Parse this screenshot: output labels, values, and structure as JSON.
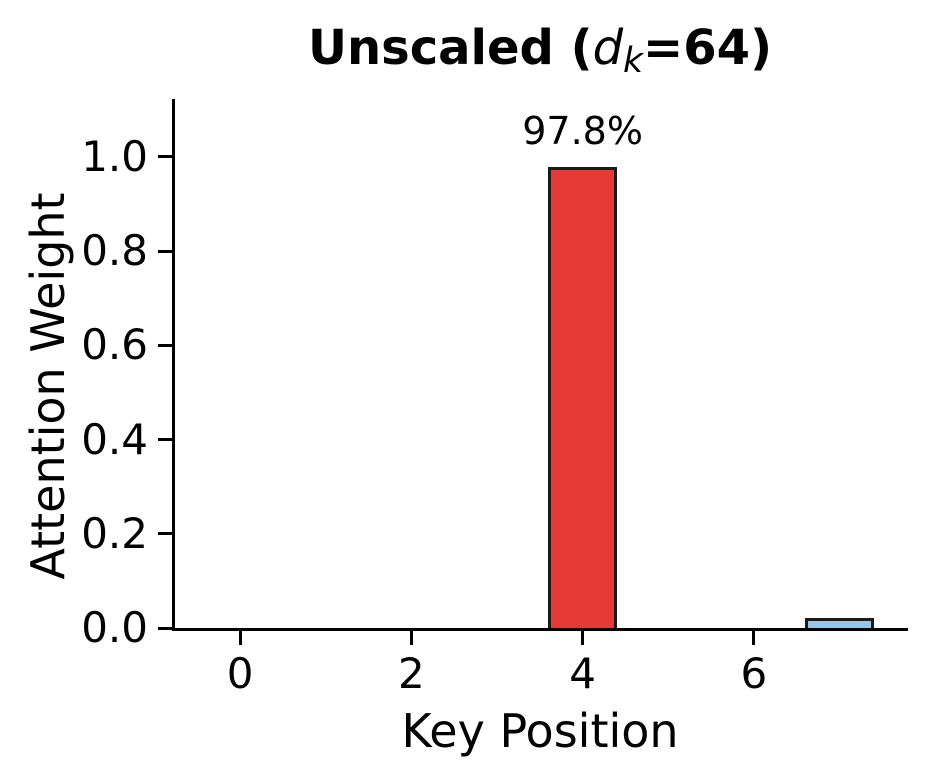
{
  "title_parts": {
    "prefix": "Unscaled (",
    "var": "d",
    "sub": "k",
    "suffix": "=64)"
  },
  "axes": {
    "xlabel": "Key Position",
    "ylabel": "Attention Weight",
    "xticks": {
      "positions": [
        0,
        2,
        4,
        6
      ],
      "labels": [
        "0",
        "2",
        "4",
        "6"
      ]
    },
    "yticks": {
      "positions": [
        0.0,
        0.2,
        0.4,
        0.6,
        0.8,
        1.0
      ],
      "labels": [
        "0.0",
        "0.2",
        "0.4",
        "0.6",
        "0.8",
        "1.0"
      ]
    }
  },
  "colors": {
    "bar_highlight": "#e53935",
    "bar_default": "#92c8eb",
    "bar_edge": "#1a1a1a",
    "text": "#000000",
    "spine": "#000000"
  },
  "chart_data": {
    "type": "bar",
    "title": "Unscaled (d_k=64)",
    "xlabel": "Key Position",
    "ylabel": "Attention Weight",
    "x": [
      0,
      1,
      2,
      3,
      4,
      5,
      6,
      7
    ],
    "values": [
      0,
      0,
      0,
      0,
      0.978,
      0,
      0,
      0.022
    ],
    "bar_colors": [
      "#92c8eb",
      "#92c8eb",
      "#92c8eb",
      "#92c8eb",
      "#e53935",
      "#92c8eb",
      "#92c8eb",
      "#92c8eb"
    ],
    "edge_color": "#1a1a1a",
    "bar_width": 0.8,
    "annotations": [
      {
        "x": 4,
        "text": "97.8%"
      }
    ],
    "xlim": [
      -0.76,
      7.8
    ],
    "ylim": [
      0,
      1.123
    ],
    "grid": false,
    "legend": null,
    "spines": [
      "left",
      "bottom"
    ]
  }
}
